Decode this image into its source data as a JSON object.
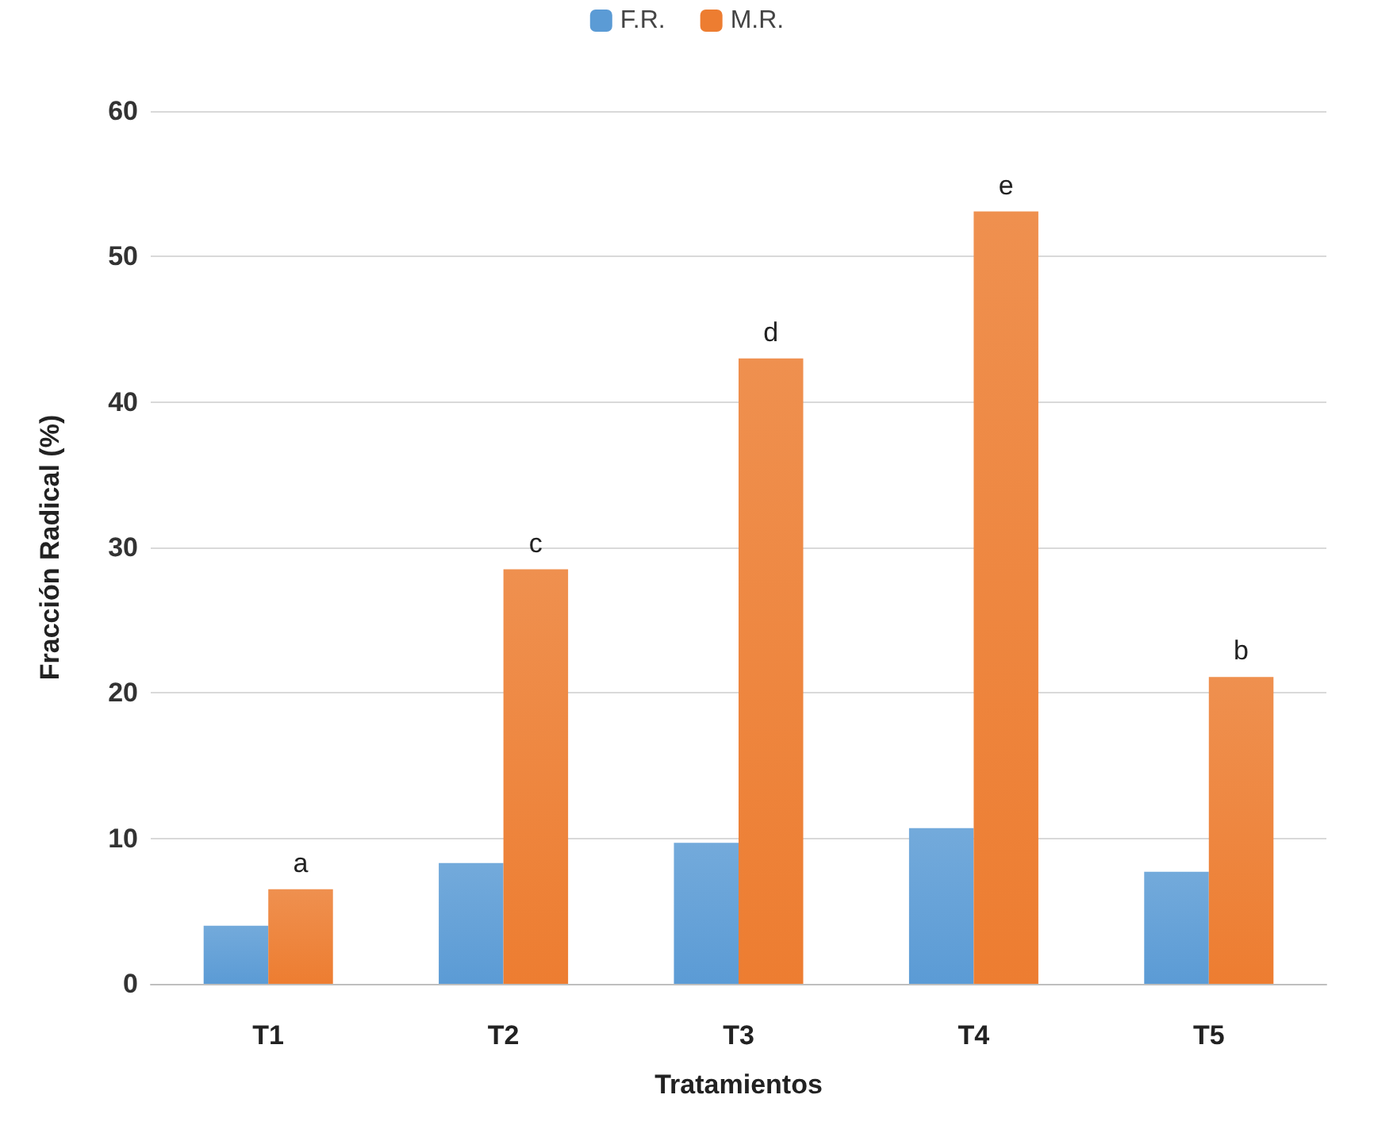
{
  "chart_data": {
    "type": "bar",
    "xlabel": "Tratamientos",
    "ylabel": "Fracción Radical (%)",
    "categories": [
      "T1",
      "T2",
      "T3",
      "T4",
      "T5"
    ],
    "series": [
      {
        "name": "F.R.",
        "color": "#5b9bd5",
        "values": [
          4.0,
          8.3,
          9.7,
          10.7,
          7.7
        ]
      },
      {
        "name": "M.R.",
        "color": "#ed7d31",
        "values": [
          6.5,
          28.5,
          43.0,
          53.1,
          21.1
        ]
      }
    ],
    "annotations": [
      {
        "text": "a",
        "x": "T1",
        "y": 6.5
      },
      {
        "text": "c",
        "x": "T2",
        "y": 28.5
      },
      {
        "text": "d",
        "x": "T3",
        "y": 43.0
      },
      {
        "text": "e",
        "x": "T4",
        "y": 53.1
      },
      {
        "text": "b",
        "x": "T5",
        "y": 21.1
      }
    ],
    "ylim": [
      0,
      60
    ],
    "yticks": [
      0,
      10,
      20,
      30,
      40,
      50,
      60
    ],
    "grid": "y",
    "legend": "top"
  }
}
